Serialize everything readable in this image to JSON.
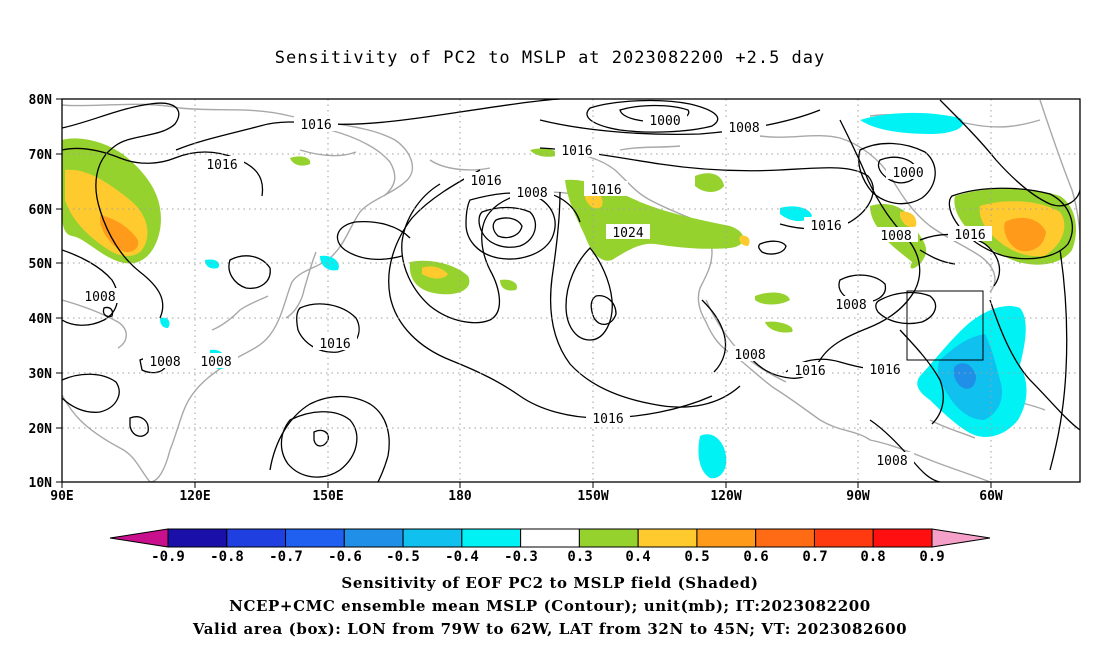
{
  "title": "Sensitivity of PC2 to MSLP at 2023082200 +2.5 day",
  "axes": {
    "lat_labels": [
      "10N",
      "20N",
      "30N",
      "40N",
      "50N",
      "60N",
      "70N",
      "80N"
    ],
    "lon_labels": [
      "90E",
      "120E",
      "150E",
      "180",
      "150W",
      "120W",
      "90W",
      "60W"
    ]
  },
  "contour_labels": [
    "1016",
    "1016",
    "1016",
    "1016",
    "1016",
    "1016",
    "1016",
    "1016",
    "1016",
    "1016",
    "1016",
    "1008",
    "1008",
    "1008",
    "1008",
    "1008",
    "1008",
    "1008",
    "1000",
    "1000",
    "1024"
  ],
  "colorbar": {
    "labels": [
      "-0.9",
      "-0.8",
      "-0.7",
      "-0.6",
      "-0.5",
      "-0.4",
      "-0.3",
      "0.3",
      "0.4",
      "0.5",
      "0.6",
      "0.7",
      "0.8",
      "0.9"
    ],
    "colors": [
      "#1a0fa8",
      "#1f3fe0",
      "#2060f0",
      "#1f8fe8",
      "#10c0ee",
      "#00f2f5",
      "#ffffff",
      "#96d22e",
      "#ffca2e",
      "#ff9a1a",
      "#ff6a14",
      "#ff3a10",
      "#ff0f0f"
    ],
    "low_end_color": "#c8108c",
    "high_end_color": "#f5a0c8"
  },
  "captions": [
    "Sensitivity of EOF PC2 to MSLP field (Shaded)",
    "NCEP+CMC ensemble mean MSLP (Contour); unit(mb); IT:2023082200",
    "Valid area (box): LON from 79W to 62W, LAT from 32N to 45N; VT: 2023082600"
  ]
}
